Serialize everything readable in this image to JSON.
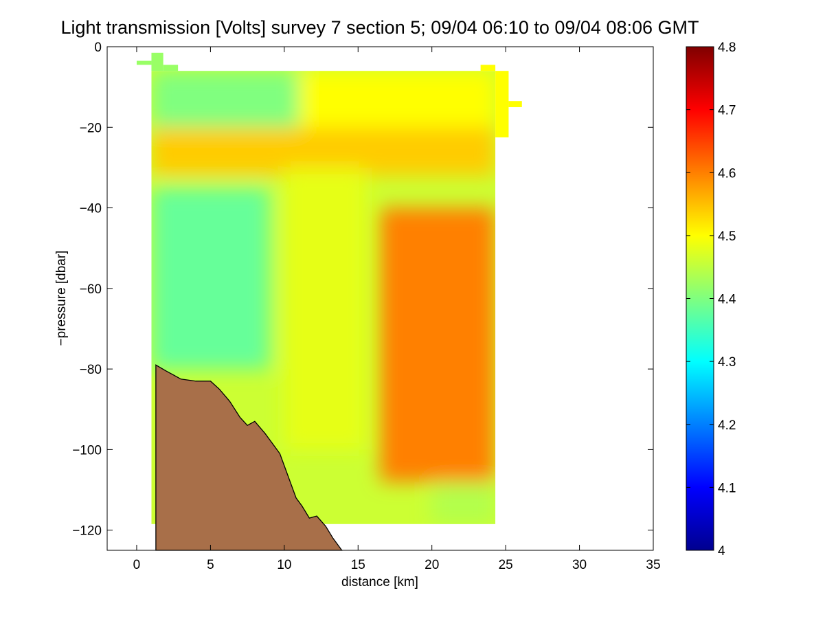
{
  "chart_data": {
    "type": "heatmap",
    "title": "Light transmission [Volts] survey 7 section 5; 09/04 06:10 to 09/04 08:06 GMT",
    "xlabel": "distance [km]",
    "ylabel": "−pressure [dbar]",
    "xlim": [
      -2,
      35
    ],
    "ylim": [
      -125,
      0
    ],
    "x_ticks": [
      "0",
      "5",
      "10",
      "15",
      "20",
      "25",
      "30",
      "35"
    ],
    "x_tick_values": [
      0,
      5,
      10,
      15,
      20,
      25,
      30,
      35
    ],
    "y_ticks": [
      "0",
      "−20",
      "−40",
      "−60",
      "−80",
      "−100",
      "−120"
    ],
    "y_tick_values": [
      0,
      -20,
      -40,
      -60,
      -80,
      -100,
      -120
    ],
    "colorbar": {
      "min": 4.0,
      "max": 4.8,
      "colormap": "jet",
      "tick_labels": [
        "4",
        "4.1",
        "4.2",
        "4.3",
        "4.4",
        "4.5",
        "4.6",
        "4.7",
        "4.8"
      ],
      "tick_values": [
        4.0,
        4.1,
        4.2,
        4.3,
        4.4,
        4.5,
        4.6,
        4.7,
        4.8
      ]
    },
    "grid": false,
    "field": {
      "x_range": [
        1,
        24.3
      ],
      "y_range": [
        -118.5,
        -6
      ],
      "regions": [
        {
          "name": "near-surface layer",
          "x": [
            1,
            11
          ],
          "y": [
            -22,
            -6
          ],
          "value": 4.4
        },
        {
          "name": "near-surface layer east",
          "x": [
            11,
            24.3
          ],
          "y": [
            -22,
            -6
          ],
          "value": 4.5
        },
        {
          "name": "subsurface band",
          "x": [
            1,
            24.3
          ],
          "y": [
            -32,
            -20
          ],
          "value": 4.54
        },
        {
          "name": "western water mass",
          "x": [
            1,
            9
          ],
          "y": [
            -80,
            -35
          ],
          "value": 4.38
        },
        {
          "name": "central tongue",
          "x": [
            10,
            15.5
          ],
          "y": [
            -100,
            -30
          ],
          "value": 4.48
        },
        {
          "name": "eastern high-transmission core",
          "x": [
            16.5,
            24.3
          ],
          "y": [
            -108,
            -40
          ],
          "value": 4.6
        },
        {
          "name": "bottom water east",
          "x": [
            20,
            24.3
          ],
          "y": [
            -118.5,
            -108
          ],
          "value": 4.44
        }
      ]
    },
    "bathymetry": {
      "color": "#a86f49",
      "distance_km": [
        1.3,
        2.0,
        3.0,
        4.0,
        5.0,
        5.6,
        6.3,
        7.0,
        7.5,
        8.0,
        8.7,
        9.3,
        9.7,
        10.0,
        10.4,
        10.8,
        11.2,
        11.7,
        12.2,
        12.8,
        13.3,
        13.9
      ],
      "depth_dbar": [
        -79,
        -80.5,
        -82.5,
        -83,
        -83,
        -85,
        -88,
        -92,
        -94,
        -93,
        -96,
        -99,
        -101,
        -104,
        -108,
        -112,
        -114,
        -117,
        -116.5,
        -119,
        -122,
        -125
      ]
    },
    "data_gaps": [
      {
        "x": [
          0,
          1
        ],
        "y": [
          -4.5,
          -3.5
        ],
        "value": 4.42
      },
      {
        "x": [
          1,
          1.8
        ],
        "y": [
          -6,
          -1.5
        ],
        "value": 4.42
      },
      {
        "x": [
          1.8,
          2.8
        ],
        "y": [
          -6,
          -4.5
        ],
        "value": 4.42
      },
      {
        "x": [
          23.3,
          24.3
        ],
        "y": [
          -6,
          -4.5
        ],
        "value": 4.5
      },
      {
        "x": [
          24.3,
          25.2
        ],
        "y": [
          -22.5,
          -6
        ],
        "value": 4.5
      },
      {
        "x": [
          25.2,
          26.1
        ],
        "y": [
          -15,
          -13.5
        ],
        "value": 4.5
      }
    ]
  }
}
